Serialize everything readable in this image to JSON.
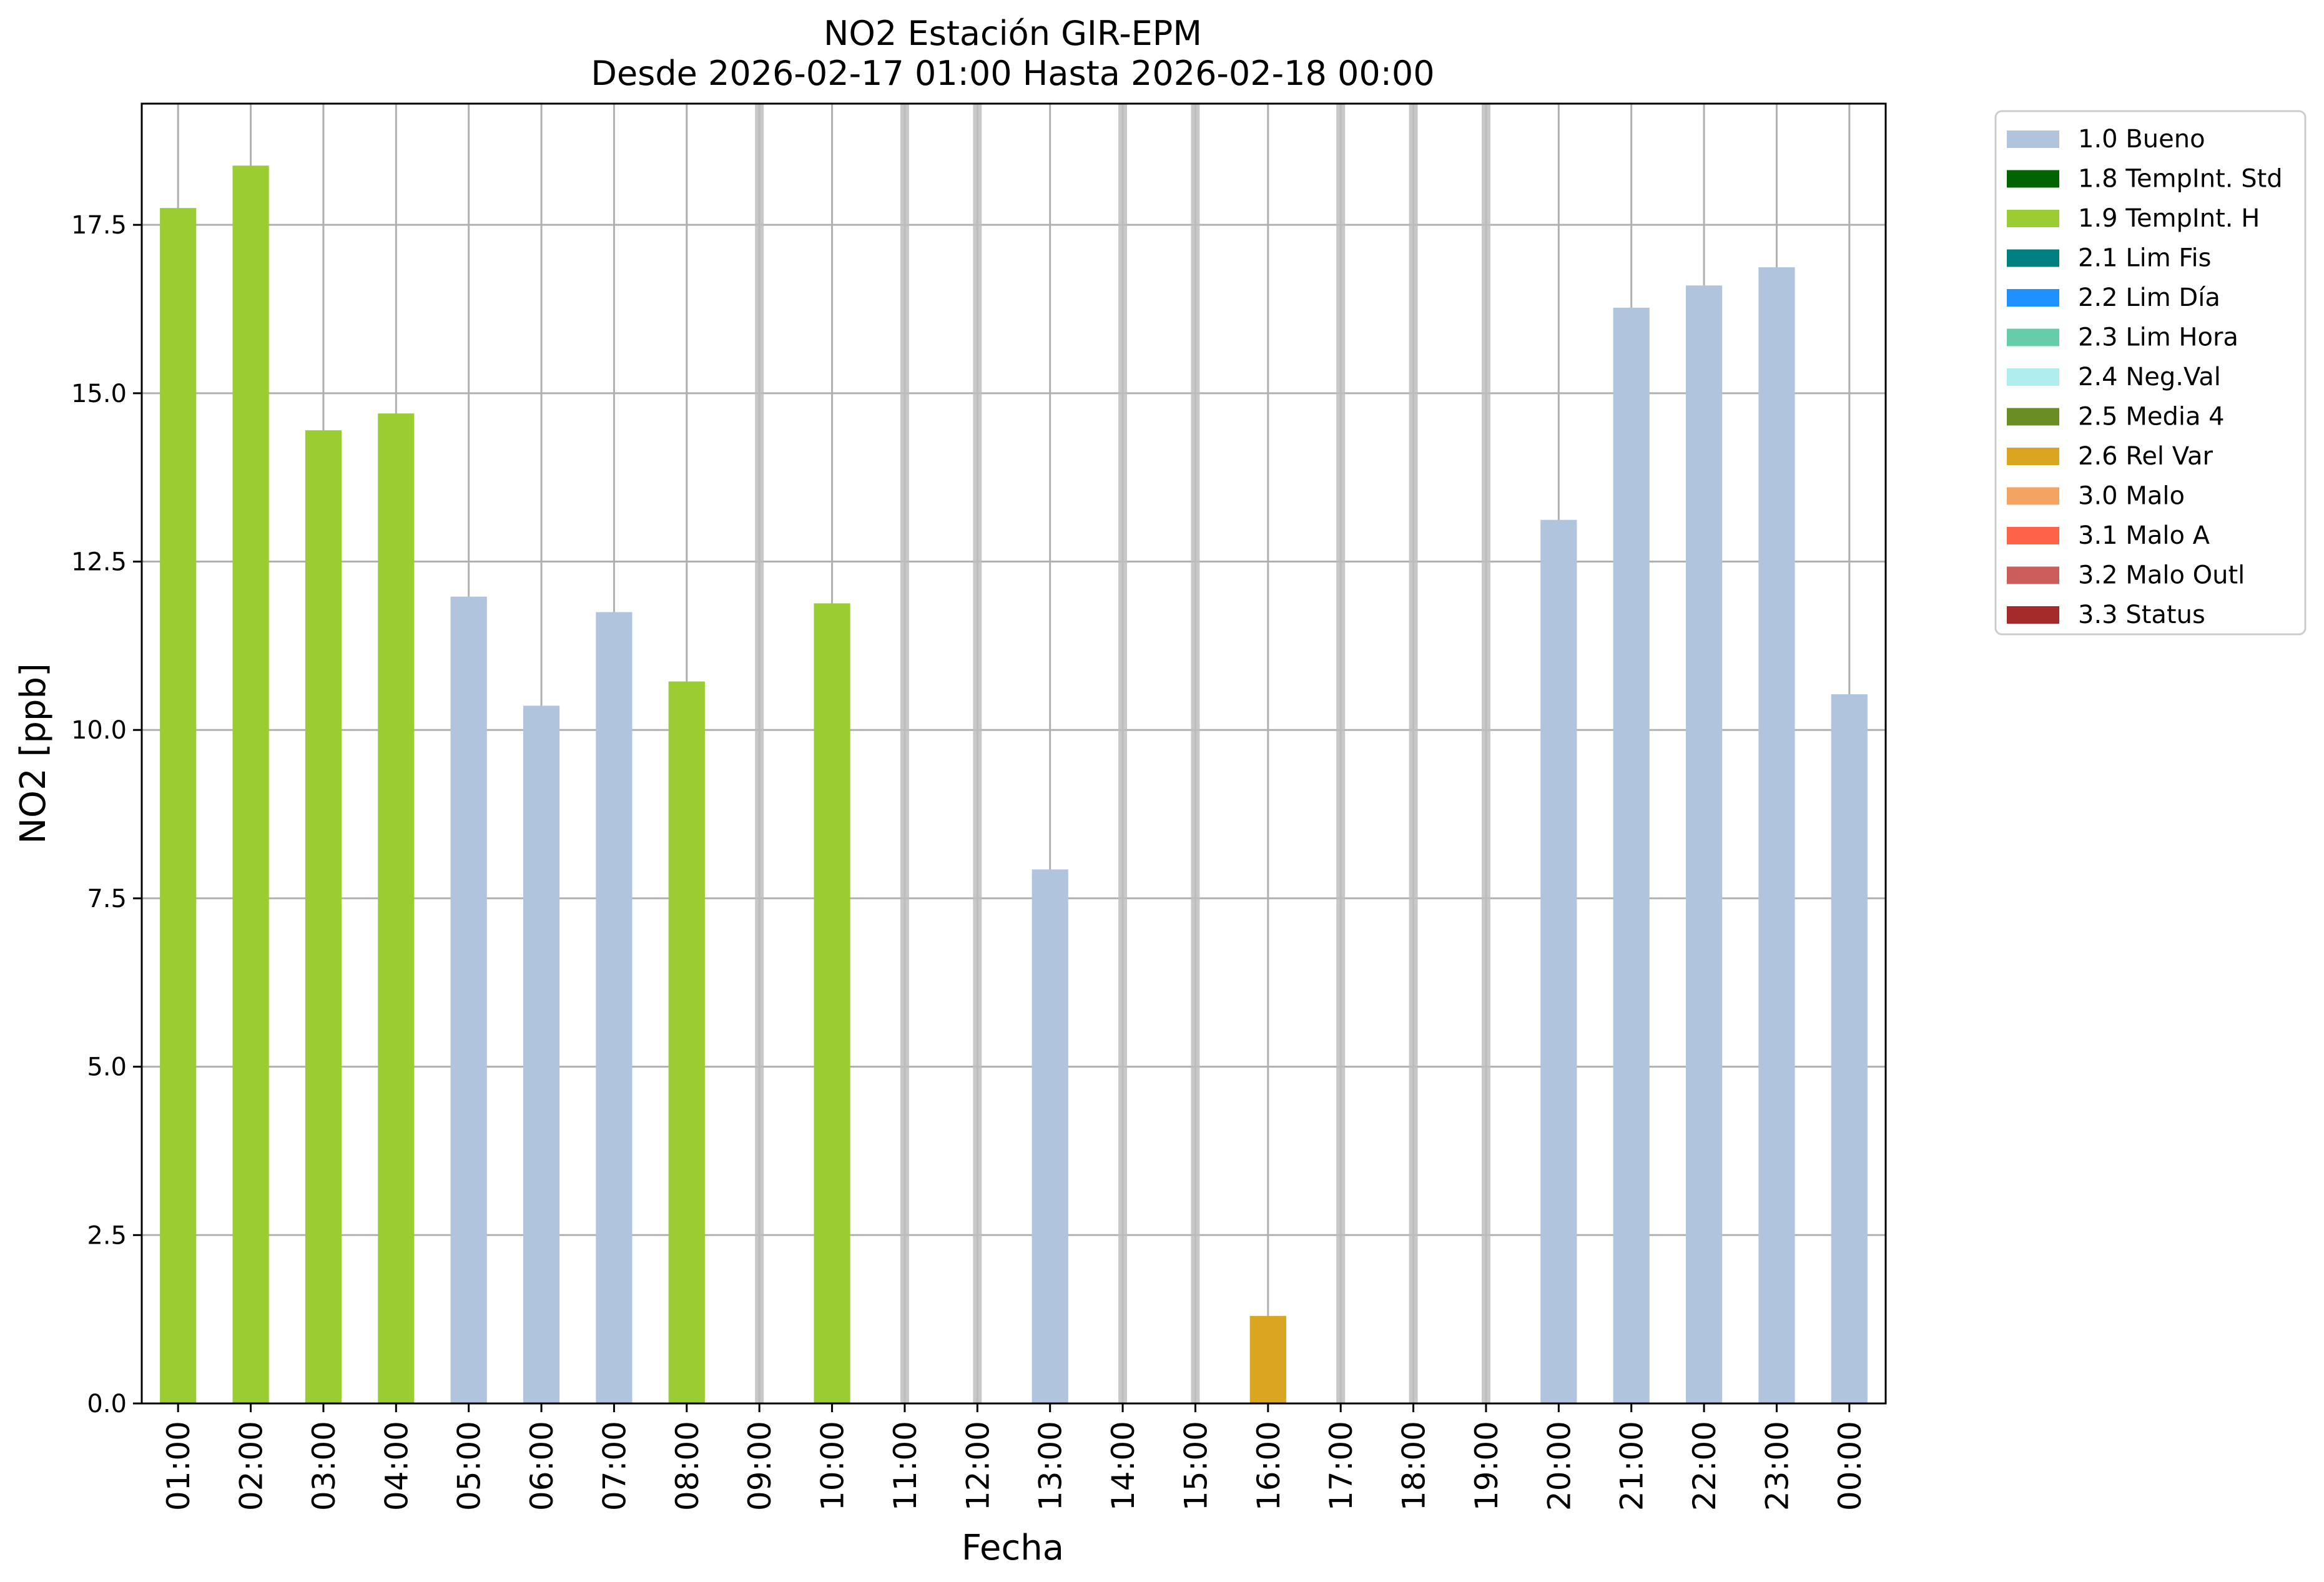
{
  "chart_data": {
    "type": "bar",
    "title_line1": "NO2 Estación GIR-EPM",
    "title_line2": "Desde 2026-02-17 01:00 Hasta 2026-02-18 00:00",
    "xlabel": "Fecha",
    "ylabel": "NO2 [ppb]",
    "ylim": [
      0,
      19.3
    ],
    "yticks": [
      "0.0",
      "2.5",
      "5.0",
      "7.5",
      "10.0",
      "12.5",
      "15.0",
      "17.5"
    ],
    "ytick_values": [
      0,
      2.5,
      5,
      7.5,
      10,
      12.5,
      15,
      17.5
    ],
    "grid": true,
    "legend_position": "outside-top-right",
    "categories": [
      "01:00",
      "02:00",
      "03:00",
      "04:00",
      "05:00",
      "06:00",
      "07:00",
      "08:00",
      "09:00",
      "10:00",
      "11:00",
      "12:00",
      "13:00",
      "14:00",
      "15:00",
      "16:00",
      "17:00",
      "18:00",
      "19:00",
      "20:00",
      "21:00",
      "22:00",
      "23:00",
      "00:00"
    ],
    "values": [
      17.75,
      18.38,
      14.45,
      14.7,
      11.98,
      10.36,
      11.75,
      10.72,
      0,
      11.88,
      0,
      0,
      7.93,
      0,
      0,
      1.3,
      0,
      0,
      0,
      13.12,
      16.27,
      16.6,
      16.87,
      10.53
    ],
    "flags": [
      "1.9",
      "1.9",
      "1.9",
      "1.9",
      "1.0",
      "1.0",
      "1.0",
      "1.9",
      "",
      "1.9",
      "",
      "",
      "1.0",
      "",
      "",
      "2.6",
      "",
      "",
      "",
      "1.0",
      "1.0",
      "1.0",
      "1.0",
      "1.0"
    ],
    "legend": [
      {
        "label": "1.0 Bueno",
        "color": "#b0c4de"
      },
      {
        "label": "1.8 TempInt. Std",
        "color": "#006400"
      },
      {
        "label": "1.9 TempInt. H",
        "color": "#9acd32"
      },
      {
        "label": "2.1 Lim Fis",
        "color": "#008080"
      },
      {
        "label": "2.2 Lim Día",
        "color": "#1e90ff"
      },
      {
        "label": "2.3 Lim Hora",
        "color": "#66cdaa"
      },
      {
        "label": "2.4 Neg.Val",
        "color": "#afeeee"
      },
      {
        "label": "2.5 Media 4",
        "color": "#6b8e23"
      },
      {
        "label": "2.6 Rel Var",
        "color": "#daa520"
      },
      {
        "label": "3.0 Malo",
        "color": "#f4a460"
      },
      {
        "label": "3.1 Malo A",
        "color": "#ff6347"
      },
      {
        "label": "3.2 Malo Outl",
        "color": "#cd5c5c"
      },
      {
        "label": "3.3 Status",
        "color": "#a52a2a"
      }
    ]
  }
}
